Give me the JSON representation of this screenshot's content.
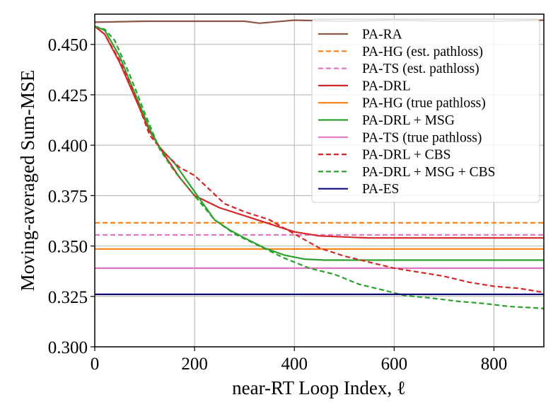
{
  "chart_data": {
    "type": "line",
    "title": "",
    "xlabel": "near-RT Loop Index, ℓ",
    "ylabel": "Moving-averaged Sum-MSE",
    "xlim": [
      0,
      900
    ],
    "ylim": [
      0.3,
      0.465
    ],
    "xticks": [
      0,
      200,
      400,
      600,
      800
    ],
    "xtick_labels": [
      "0",
      "200",
      "400",
      "600",
      "800"
    ],
    "yticks": [
      0.3,
      0.325,
      0.35,
      0.375,
      0.4,
      0.425,
      0.45
    ],
    "ytick_labels": [
      "0.300",
      "0.325",
      "0.350",
      "0.375",
      "0.400",
      "0.425",
      "0.450"
    ],
    "grid": true,
    "legend_position": "top-right",
    "series": [
      {
        "name": "PA-RA",
        "color": "#8c564b",
        "dash": "solid",
        "x": [
          0,
          100,
          200,
          300,
          330,
          400,
          500,
          600,
          700,
          800,
          900
        ],
        "y": [
          0.461,
          0.4615,
          0.4615,
          0.4615,
          0.4605,
          0.462,
          0.4615,
          0.462,
          0.4615,
          0.4615,
          0.462
        ]
      },
      {
        "name": "PA-HG (est. pathloss)",
        "color": "#ff7f0e",
        "dash": "dashed",
        "x": [
          0,
          900
        ],
        "y": [
          0.3615,
          0.3615
        ]
      },
      {
        "name": "PA-TS (est. pathloss)",
        "color": "#e377c2",
        "dash": "dashed",
        "x": [
          0,
          900
        ],
        "y": [
          0.3555,
          0.3555
        ]
      },
      {
        "name": "PA-DRL",
        "color": "#d62728",
        "dash": "solid",
        "x": [
          0,
          20,
          50,
          80,
          110,
          140,
          170,
          200,
          250,
          300,
          350,
          400,
          450,
          500,
          550,
          600,
          700,
          800,
          900
        ],
        "y": [
          0.459,
          0.455,
          0.441,
          0.424,
          0.407,
          0.395,
          0.384,
          0.375,
          0.369,
          0.365,
          0.361,
          0.357,
          0.355,
          0.3545,
          0.354,
          0.354,
          0.354,
          0.354,
          0.354
        ]
      },
      {
        "name": "PA-HG (true pathloss)",
        "color": "#ff7f0e",
        "dash": "solid",
        "x": [
          0,
          900
        ],
        "y": [
          0.3485,
          0.3485
        ]
      },
      {
        "name": "PA-DRL + MSG",
        "color": "#2ca02c",
        "dash": "solid",
        "x": [
          0,
          20,
          50,
          80,
          110,
          130,
          160,
          200,
          240,
          270,
          300,
          340,
          380,
          420,
          460,
          500,
          600,
          700,
          800,
          900
        ],
        "y": [
          0.459,
          0.457,
          0.444,
          0.426,
          0.408,
          0.399,
          0.391,
          0.377,
          0.363,
          0.358,
          0.354,
          0.349,
          0.3455,
          0.3435,
          0.343,
          0.343,
          0.343,
          0.343,
          0.343,
          0.343
        ]
      },
      {
        "name": "PA-TS (true pathloss)",
        "color": "#e377c2",
        "dash": "solid",
        "x": [
          0,
          900
        ],
        "y": [
          0.339,
          0.339
        ]
      },
      {
        "name": "PA-DRL + CBS",
        "color": "#d62728",
        "dash": "dashed",
        "x": [
          0,
          20,
          50,
          80,
          110,
          140,
          170,
          200,
          230,
          260,
          300,
          350,
          400,
          450,
          500,
          550,
          600,
          650,
          700,
          750,
          800,
          850,
          900
        ],
        "y": [
          0.459,
          0.455,
          0.442,
          0.425,
          0.405,
          0.396,
          0.389,
          0.385,
          0.378,
          0.371,
          0.367,
          0.363,
          0.356,
          0.349,
          0.345,
          0.342,
          0.339,
          0.337,
          0.335,
          0.332,
          0.33,
          0.329,
          0.327
        ]
      },
      {
        "name": "PA-DRL + MSG + CBS",
        "color": "#2ca02c",
        "dash": "dashed",
        "x": [
          0,
          20,
          40,
          70,
          100,
          130,
          160,
          200,
          240,
          280,
          330,
          380,
          430,
          480,
          530,
          580,
          620,
          680,
          730,
          780,
          830,
          870,
          900
        ],
        "y": [
          0.459,
          0.4575,
          0.452,
          0.435,
          0.416,
          0.398,
          0.387,
          0.375,
          0.363,
          0.356,
          0.35,
          0.344,
          0.339,
          0.336,
          0.331,
          0.328,
          0.3255,
          0.324,
          0.3225,
          0.3215,
          0.32,
          0.3195,
          0.319
        ]
      },
      {
        "name": "PA-ES",
        "color": "#0a0a80",
        "dash": "solid",
        "x": [
          0,
          900
        ],
        "y": [
          0.326,
          0.326
        ]
      }
    ]
  }
}
